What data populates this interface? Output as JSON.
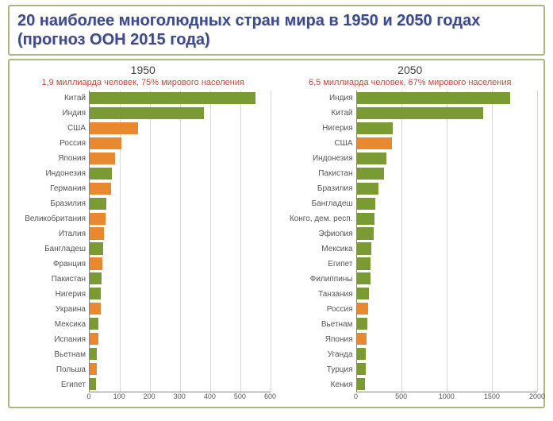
{
  "title": "20 наиболее многолюдных стран мира в 1950 и 2050 годах (прогноз ООН 2015 года)",
  "colors": {
    "green": "#7a9a33",
    "orange": "#e8892f",
    "grid": "#d8d8d8",
    "axis": "#888888",
    "subtitle": "#c24b3a",
    "title": "#3d4b8a",
    "border": "#a9b780",
    "bg": "#ffffff"
  },
  "panels": [
    {
      "key": "p1950",
      "year": "1950",
      "subtitle": "1,9 миллиарда человек, 75% мирового населения",
      "xlim": [
        0,
        600
      ],
      "xticks": [
        0,
        100,
        200,
        300,
        400,
        500,
        600
      ],
      "categories": [
        "Китай",
        "Индия",
        "США",
        "Россия",
        "Япония",
        "Индонезия",
        "Германия",
        "Бразилия",
        "Великобритания",
        "Италия",
        "Бангладеш",
        "Франция",
        "Пакистан",
        "Нигерия",
        "Украина",
        "Мексика",
        "Испания",
        "Вьетнам",
        "Польша",
        "Египет"
      ],
      "values": [
        550,
        380,
        160,
        105,
        85,
        75,
        70,
        55,
        52,
        48,
        45,
        43,
        40,
        38,
        37,
        30,
        28,
        25,
        24,
        22
      ],
      "bar_colors": [
        "green",
        "green",
        "orange",
        "orange",
        "orange",
        "green",
        "orange",
        "green",
        "orange",
        "orange",
        "green",
        "orange",
        "green",
        "green",
        "orange",
        "green",
        "orange",
        "green",
        "orange",
        "green"
      ]
    },
    {
      "key": "p2050",
      "year": "2050",
      "subtitle": "6,5 миллиарда человек, 67% мирового населения",
      "xlim": [
        0,
        2000
      ],
      "xticks": [
        0,
        500,
        1000,
        1500,
        2000
      ],
      "categories": [
        "Индия",
        "Китай",
        "Нигерия",
        "США",
        "Индонезия",
        "Пакистан",
        "Бразилия",
        "Бангладеш",
        "Конго, дем. респ.",
        "Эфиопия",
        "Мексика",
        "Египет",
        "Филиппины",
        "Танзания",
        "Россия",
        "Вьетнам",
        "Япония",
        "Уганда",
        "Турция",
        "Кения"
      ],
      "values": [
        1700,
        1400,
        400,
        395,
        330,
        305,
        240,
        205,
        200,
        190,
        165,
        155,
        150,
        140,
        130,
        115,
        110,
        105,
        100,
        95
      ],
      "bar_colors": [
        "green",
        "green",
        "green",
        "orange",
        "green",
        "green",
        "green",
        "green",
        "green",
        "green",
        "green",
        "green",
        "green",
        "green",
        "orange",
        "green",
        "orange",
        "green",
        "green",
        "green"
      ]
    }
  ]
}
